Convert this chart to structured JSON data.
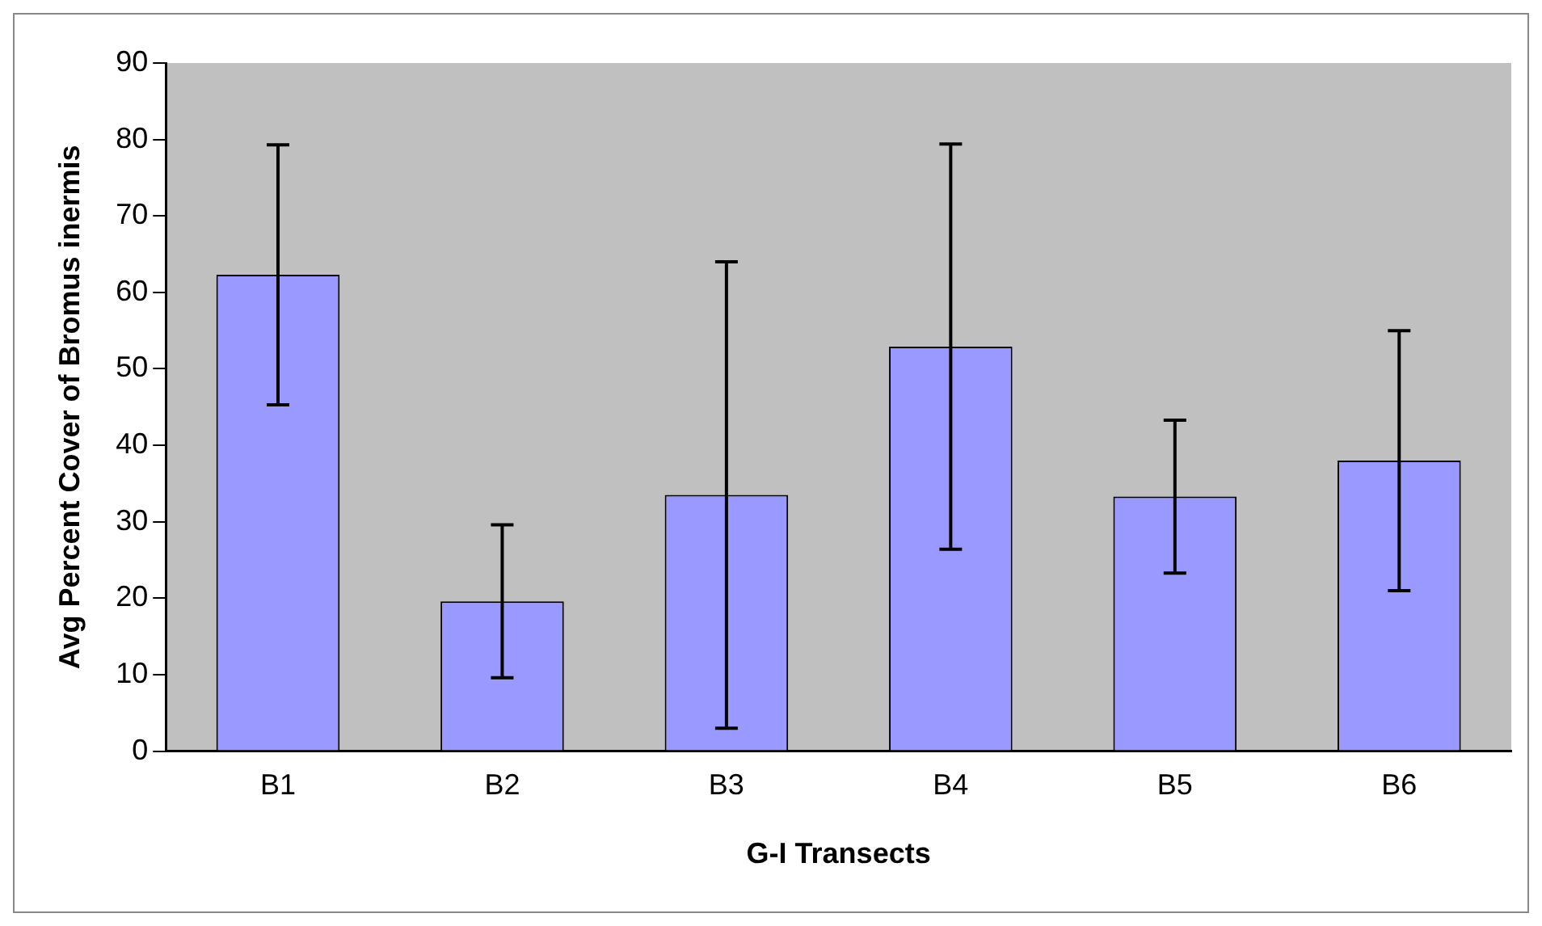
{
  "chart_data": {
    "type": "bar",
    "xlabel": "G-I Transects",
    "ylabel": "Avg Percent Cover of Bromus inermis",
    "categories": [
      "B1",
      "B2",
      "B3",
      "B4",
      "B5",
      "B6"
    ],
    "values": [
      62.3,
      19.6,
      33.5,
      52.9,
      33.3,
      38
    ],
    "errors": [
      17,
      10,
      30.5,
      26.5,
      10,
      17
    ],
    "color": "#9999ff",
    "ylim": [
      0,
      90
    ],
    "yticks": [
      0,
      10,
      20,
      30,
      40,
      50,
      60,
      70,
      80,
      90
    ],
    "grid": false,
    "legend": false
  }
}
